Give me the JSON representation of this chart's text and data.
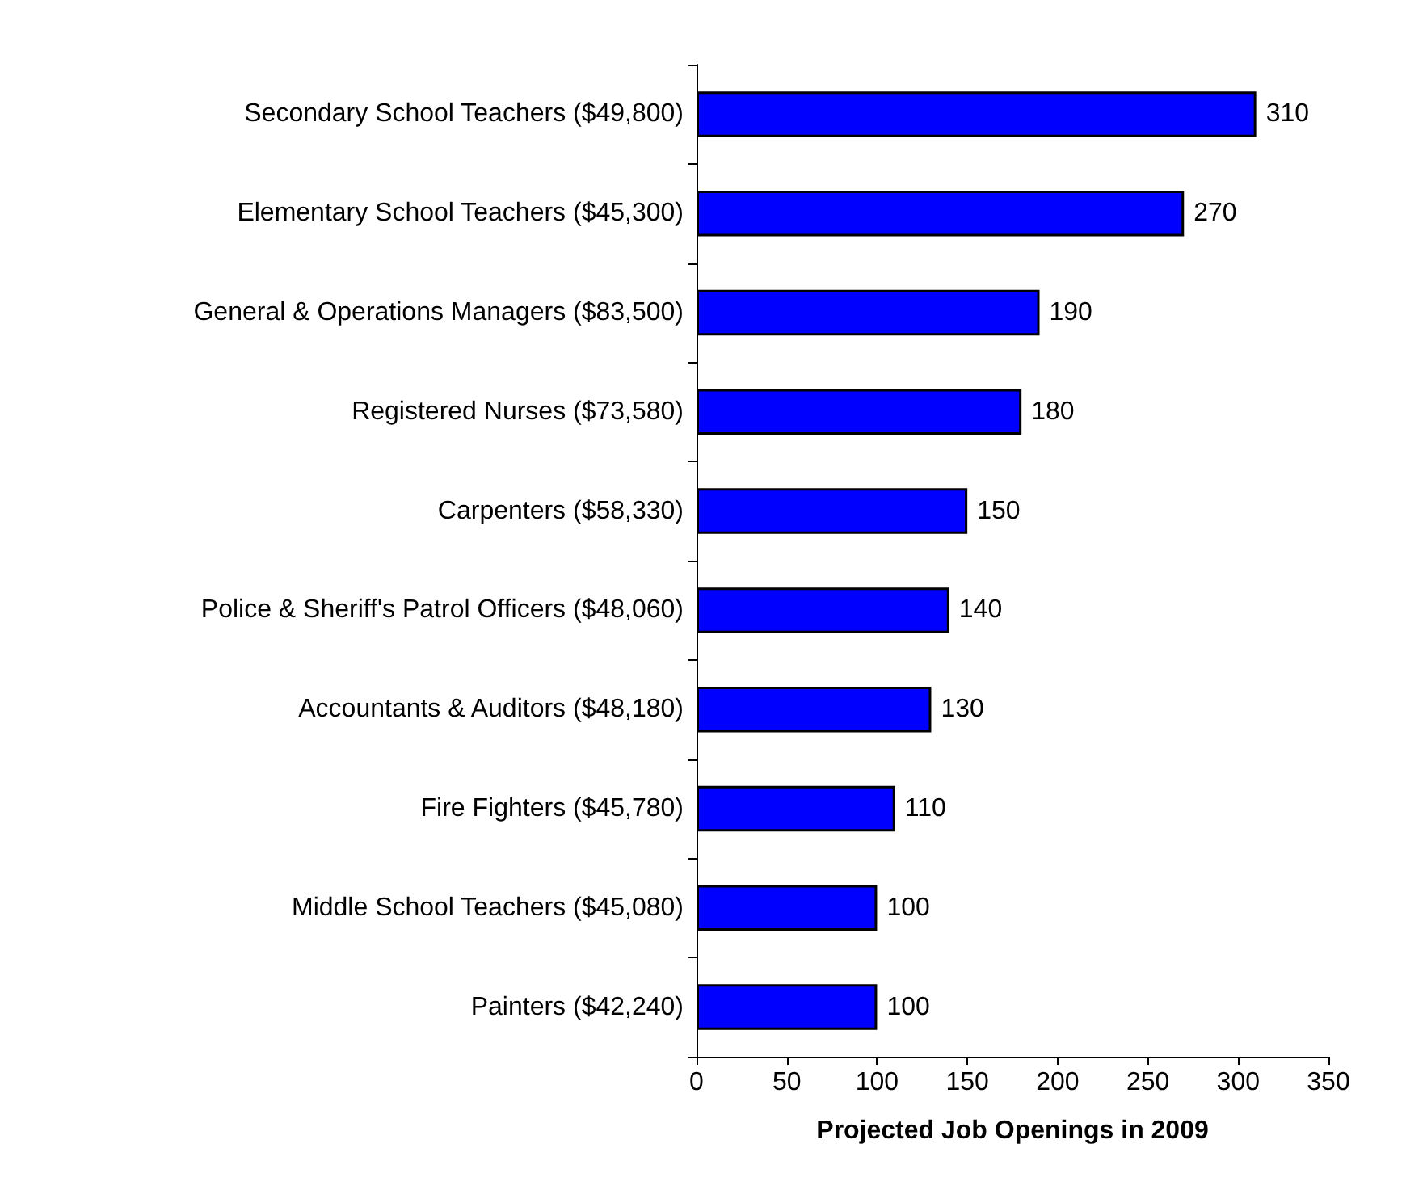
{
  "chart_data": {
    "type": "bar",
    "orientation": "horizontal",
    "xlabel": "Projected Job Openings in 2009",
    "categories": [
      "Secondary School Teachers ($49,800)",
      "Elementary School Teachers ($45,300)",
      "General & Operations Managers ($83,500)",
      "Registered Nurses ($73,580)",
      "Carpenters ($58,330)",
      "Police & Sheriff's Patrol Officers ($48,060)",
      "Accountants & Auditors ($48,180)",
      "Fire Fighters ($45,780)",
      "Middle School Teachers ($45,080)",
      "Painters ($42,240)"
    ],
    "values": [
      310,
      270,
      190,
      180,
      150,
      140,
      130,
      110,
      100,
      100
    ],
    "color": "#0000ff",
    "xlim": [
      0,
      350
    ],
    "xticks": [
      0,
      50,
      100,
      150,
      200,
      250,
      300,
      350
    ],
    "data_labels": true
  }
}
